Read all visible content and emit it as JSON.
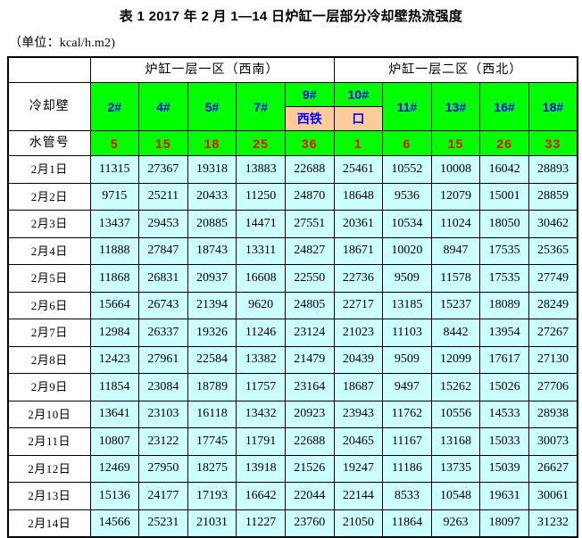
{
  "title": "表 1  2017 年 2 月 1—14 日炉缸一层部分冷却壁热流强度",
  "unit_label": "（单位：kcal/h.m2)",
  "colors": {
    "header_green": "#00ff00",
    "data_cyan": "#ccffff",
    "taphole_peach": "#ffcc99",
    "header_blue_text": "#0000ff",
    "pipe_red_text": "#ff0000",
    "border_black": "#000000"
  },
  "chart_data": {
    "type": "table",
    "title": "表 1  2017 年 2 月 1—14 日炉缸一层部分冷却壁热流强度",
    "unit": "kcal/h.m2",
    "region_headers": [
      {
        "label": "炉缸一层一区（西南）",
        "span": 5
      },
      {
        "label": "炉缸一层二区（西北）",
        "span": 5
      }
    ],
    "cooling_wall_label": "冷却壁",
    "water_pipe_label": "水管号",
    "columns": [
      {
        "id": "2#",
        "sub": null,
        "pipe": "5"
      },
      {
        "id": "4#",
        "sub": null,
        "pipe": "15"
      },
      {
        "id": "5#",
        "sub": null,
        "pipe": "18"
      },
      {
        "id": "7#",
        "sub": null,
        "pipe": "25"
      },
      {
        "id": "9#",
        "sub": "西铁",
        "pipe": "36"
      },
      {
        "id": "10#",
        "sub": "口",
        "pipe": "1"
      },
      {
        "id": "11#",
        "sub": null,
        "pipe": "6"
      },
      {
        "id": "13#",
        "sub": null,
        "pipe": "15"
      },
      {
        "id": "16#",
        "sub": null,
        "pipe": "26"
      },
      {
        "id": "18#",
        "sub": null,
        "pipe": "33"
      }
    ],
    "rows": [
      {
        "date": "2月1日",
        "values": [
          11315,
          27367,
          19318,
          13883,
          22688,
          25461,
          10552,
          10008,
          16042,
          28893
        ]
      },
      {
        "date": "2月2日",
        "values": [
          9715,
          25211,
          20433,
          11250,
          24870,
          18648,
          9536,
          12079,
          15001,
          28859
        ]
      },
      {
        "date": "2月3日",
        "values": [
          13437,
          29453,
          20885,
          14471,
          27551,
          20361,
          10534,
          11024,
          18050,
          30462
        ]
      },
      {
        "date": "2月4日",
        "values": [
          11888,
          27847,
          18743,
          13311,
          24827,
          18671,
          10020,
          8947,
          17535,
          25365
        ]
      },
      {
        "date": "2月5日",
        "values": [
          11868,
          26831,
          20937,
          16608,
          22550,
          22736,
          9509,
          11578,
          17535,
          27749
        ]
      },
      {
        "date": "2月6日",
        "values": [
          15664,
          26743,
          21394,
          9620,
          24805,
          22717,
          13185,
          15237,
          18089,
          28249
        ]
      },
      {
        "date": "2月7日",
        "values": [
          12984,
          26337,
          19326,
          11246,
          23124,
          21023,
          11103,
          8442,
          13954,
          27267
        ]
      },
      {
        "date": "2月8日",
        "values": [
          12423,
          27961,
          22584,
          13382,
          21479,
          20439,
          9509,
          12099,
          17617,
          27130
        ]
      },
      {
        "date": "2月9日",
        "values": [
          11854,
          23084,
          18789,
          11757,
          23164,
          18687,
          9497,
          15262,
          15026,
          27706
        ]
      },
      {
        "date": "2月10日",
        "values": [
          13641,
          23103,
          16118,
          13432,
          20923,
          23943,
          11762,
          10556,
          14533,
          28938
        ]
      },
      {
        "date": "2月11日",
        "values": [
          10807,
          23122,
          17745,
          11791,
          22688,
          20465,
          11167,
          13168,
          15033,
          30073
        ]
      },
      {
        "date": "2月12日",
        "values": [
          12469,
          27950,
          18275,
          13918,
          21526,
          19247,
          11186,
          13735,
          15039,
          26627
        ]
      },
      {
        "date": "2月13日",
        "values": [
          15136,
          24177,
          17193,
          16642,
          22044,
          22144,
          8533,
          10548,
          19631,
          30061
        ]
      },
      {
        "date": "2月14日",
        "values": [
          14566,
          25231,
          21031,
          11227,
          23760,
          21050,
          11864,
          9263,
          18097,
          31232
        ]
      }
    ]
  }
}
